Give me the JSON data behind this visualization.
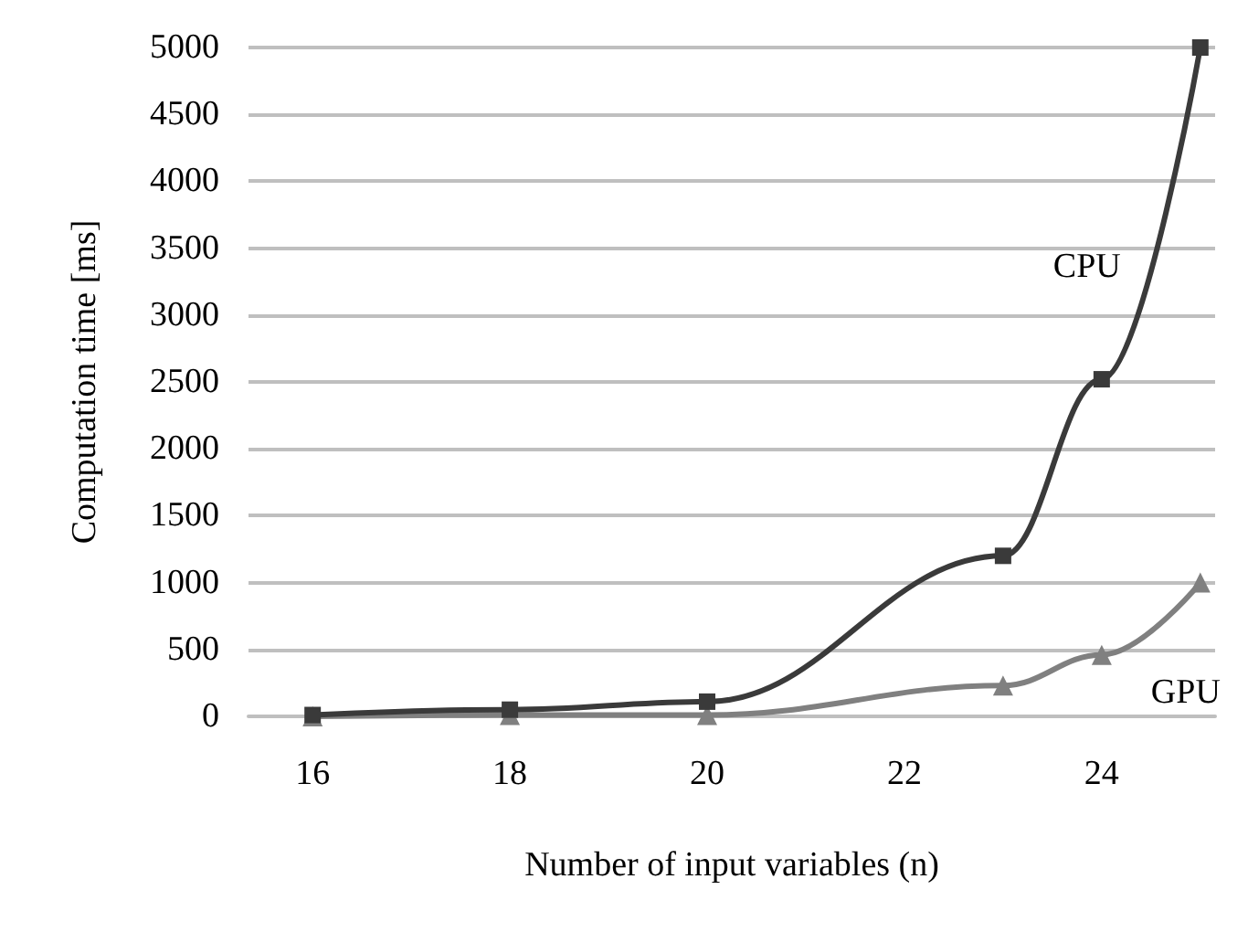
{
  "chart_data": {
    "type": "line",
    "xlabel": "Number of input variables (n)",
    "ylabel": "Computation time [ms]",
    "x": [
      16,
      18,
      20,
      23,
      24,
      25
    ],
    "xlim": [
      15.35,
      25.15
    ],
    "xticks": [
      16,
      18,
      20,
      22,
      24
    ],
    "ylim": [
      0,
      5000
    ],
    "yticks": [
      0,
      500,
      1000,
      1500,
      2000,
      2500,
      3000,
      3500,
      4000,
      4500,
      5000
    ],
    "grid": "y",
    "legend": false,
    "line_style": "solid",
    "series": [
      {
        "name": "CPU",
        "color": "#3a3a3a",
        "marker": "square",
        "values": [
          10,
          50,
          110,
          1200,
          2520,
          5000
        ]
      },
      {
        "name": "GPU",
        "color": "#808080",
        "marker": "triangle",
        "values": [
          0,
          10,
          10,
          230,
          460,
          1000
        ]
      }
    ]
  }
}
